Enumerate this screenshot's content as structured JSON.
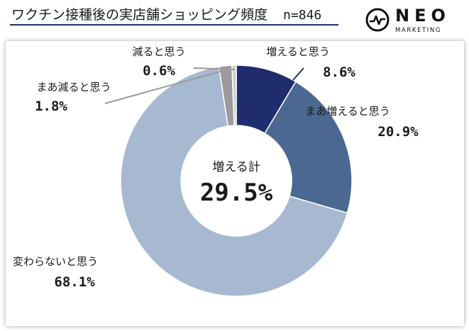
{
  "header": {
    "title": "ワクチン接種後の実店舗ショッピング頻度",
    "sample_size": "n=846"
  },
  "logo": {
    "word": "NEO",
    "sub": "MARKETING"
  },
  "chart_data": {
    "type": "pie",
    "donut": true,
    "center": {
      "label": "増える計",
      "value": "29.5%"
    },
    "slices": [
      {
        "name": "増えると思う",
        "value": 8.6,
        "display": "8.6%",
        "color": "#1f2d6e"
      },
      {
        "name": "まあ増えると思う",
        "value": 20.9,
        "display": "20.9%",
        "color": "#4a6891"
      },
      {
        "name": "変わらないと思う",
        "value": 68.1,
        "display": "68.1%",
        "color": "#a7b9d1"
      },
      {
        "name": "まあ減ると思う",
        "value": 1.8,
        "display": "1.8%",
        "color": "#9a9a9a"
      },
      {
        "name": "減ると思う",
        "value": 0.6,
        "display": "0.6%",
        "color": "#cfcfcf"
      }
    ]
  }
}
